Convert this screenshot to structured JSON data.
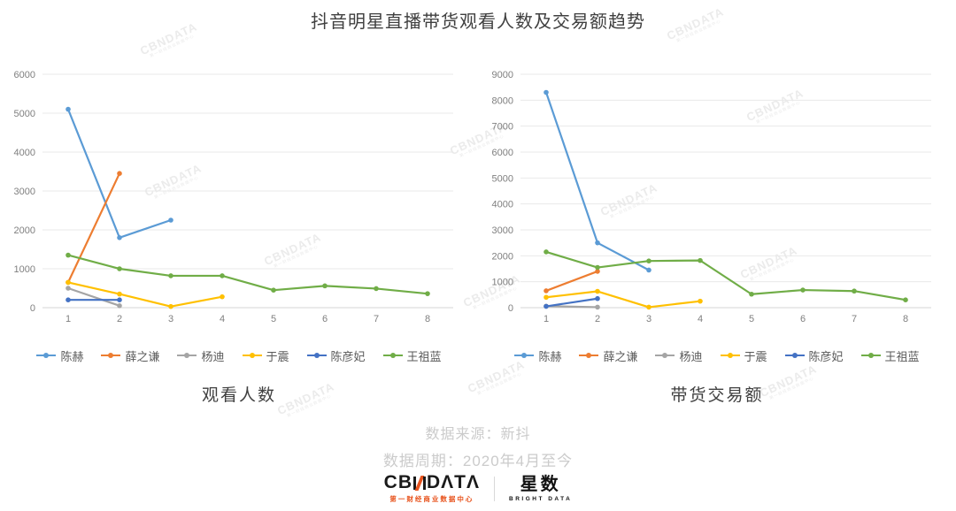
{
  "title": "抖音明星直播带货观看人数及交易额趋势",
  "watermark": {
    "text": "CBNDATA",
    "subtext": "第一财经商业数据中心"
  },
  "chart_data": [
    {
      "type": "line",
      "title": "观看人数",
      "categories": [
        "1",
        "2",
        "3",
        "4",
        "5",
        "6",
        "7",
        "8"
      ],
      "ylim": [
        0,
        6000
      ],
      "ytick_step": 1000,
      "grid": true,
      "legend_position": "bottom",
      "series": [
        {
          "name": "陈赫",
          "color": "#5B9BD5",
          "values": [
            5100,
            1800,
            2250,
            null,
            null,
            null,
            null,
            null
          ]
        },
        {
          "name": "薛之谦",
          "color": "#ED7D31",
          "values": [
            650,
            3450,
            null,
            null,
            null,
            null,
            null,
            null
          ]
        },
        {
          "name": "杨迪",
          "color": "#A5A5A5",
          "values": [
            500,
            50,
            null,
            null,
            null,
            null,
            null,
            null
          ]
        },
        {
          "name": "于震",
          "color": "#FFC000",
          "values": [
            650,
            350,
            30,
            280,
            null,
            null,
            null,
            null
          ]
        },
        {
          "name": "陈彦妃",
          "color": "#4472C4",
          "values": [
            200,
            200,
            null,
            null,
            null,
            null,
            null,
            null
          ]
        },
        {
          "name": "王祖蓝",
          "color": "#70AD47",
          "values": [
            1350,
            1000,
            820,
            820,
            450,
            560,
            490,
            360
          ]
        }
      ]
    },
    {
      "type": "line",
      "title": "带货交易额",
      "categories": [
        "1",
        "2",
        "3",
        "4",
        "5",
        "6",
        "7",
        "8"
      ],
      "ylim": [
        0,
        9000
      ],
      "ytick_step": 1000,
      "grid": true,
      "legend_position": "bottom",
      "series": [
        {
          "name": "陈赫",
          "color": "#5B9BD5",
          "values": [
            8300,
            2500,
            1450,
            null,
            null,
            null,
            null,
            null
          ]
        },
        {
          "name": "薛之谦",
          "color": "#ED7D31",
          "values": [
            650,
            1400,
            null,
            null,
            null,
            null,
            null,
            null
          ]
        },
        {
          "name": "杨迪",
          "color": "#A5A5A5",
          "values": [
            60,
            20,
            null,
            null,
            null,
            null,
            null,
            null
          ]
        },
        {
          "name": "于震",
          "color": "#FFC000",
          "values": [
            400,
            630,
            20,
            250,
            null,
            null,
            null,
            null
          ]
        },
        {
          "name": "陈彦妃",
          "color": "#4472C4",
          "values": [
            50,
            350,
            null,
            null,
            null,
            null,
            null,
            null
          ]
        },
        {
          "name": "王祖蓝",
          "color": "#70AD47",
          "values": [
            2150,
            1550,
            1800,
            1820,
            520,
            680,
            640,
            300
          ]
        }
      ]
    }
  ],
  "footer": {
    "source": "数据来源：新抖",
    "period": "数据周期：2020年4月至今"
  },
  "logos": {
    "cbndata": {
      "prefix": "CB",
      "suffix": "DΛTΛ",
      "subtitle": "第一财经商业数据中心"
    },
    "xingshu": {
      "name": "星数",
      "subtitle": "BRIGHT DATA"
    }
  }
}
